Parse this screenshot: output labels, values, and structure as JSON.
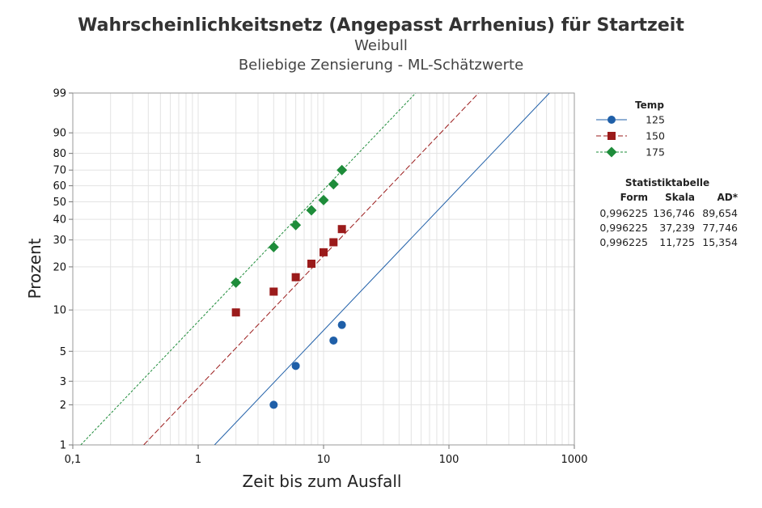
{
  "chart_data": {
    "type": "scatter",
    "title": "Wahrscheinlichkeitsnetz (Angepasst Arrhenius) für Startzeit",
    "subtitle_lines": [
      "Weibull",
      "Beliebige Zensierung - ML-Schätzwerte"
    ],
    "xlabel": "Zeit bis zum Ausfall",
    "ylabel": "Prozent",
    "x_scale": "log",
    "y_scale": "weibull",
    "xlim": [
      0.1,
      1000
    ],
    "ylim": [
      1,
      99
    ],
    "x_ticks": [
      0.1,
      1,
      10,
      100,
      1000
    ],
    "x_tick_labels": [
      "0,1",
      "1",
      "10",
      "100",
      "1000"
    ],
    "y_ticks": [
      1,
      2,
      3,
      5,
      10,
      20,
      30,
      40,
      50,
      60,
      70,
      80,
      90,
      99
    ],
    "y_tick_labels": [
      "1",
      "2",
      "3",
      "5",
      "10",
      "20",
      "30",
      "40",
      "50",
      "60",
      "70",
      "80",
      "90",
      "99"
    ],
    "grid": true,
    "legend_title": "Temp",
    "legend_position": "right",
    "series": [
      {
        "name": "125",
        "color": "#1f5fa8",
        "marker": "circle",
        "line": "solid",
        "shape": 0.996225,
        "scale": 136.746,
        "points": [
          {
            "x": 4,
            "y": 2
          },
          {
            "x": 6,
            "y": 3.9
          },
          {
            "x": 12,
            "y": 6
          },
          {
            "x": 14,
            "y": 7.8
          }
        ]
      },
      {
        "name": "150",
        "color": "#9b1b1b",
        "marker": "square",
        "line": "dashed",
        "shape": 0.996225,
        "scale": 37.239,
        "points": [
          {
            "x": 2,
            "y": 9.6
          },
          {
            "x": 4,
            "y": 13.5
          },
          {
            "x": 6,
            "y": 17
          },
          {
            "x": 8,
            "y": 21
          },
          {
            "x": 10,
            "y": 25
          },
          {
            "x": 12,
            "y": 29
          },
          {
            "x": 14,
            "y": 35
          }
        ]
      },
      {
        "name": "175",
        "color": "#1e8c3a",
        "marker": "diamond",
        "line": "dashed",
        "shape": 0.996225,
        "scale": 11.725,
        "points": [
          {
            "x": 2,
            "y": 15.6
          },
          {
            "x": 4,
            "y": 27
          },
          {
            "x": 6,
            "y": 37
          },
          {
            "x": 8,
            "y": 45
          },
          {
            "x": 10,
            "y": 51
          },
          {
            "x": 12,
            "y": 61
          },
          {
            "x": 14,
            "y": 70
          }
        ]
      }
    ],
    "stat_table": {
      "title": "Statistiktabelle",
      "headers": [
        "Form",
        "Skala",
        "AD*"
      ],
      "rows": [
        [
          "0,996225",
          "136,746",
          "89,654"
        ],
        [
          "0,996225",
          "37,239",
          "77,746"
        ],
        [
          "0,996225",
          "11,725",
          "15,354"
        ]
      ]
    }
  }
}
